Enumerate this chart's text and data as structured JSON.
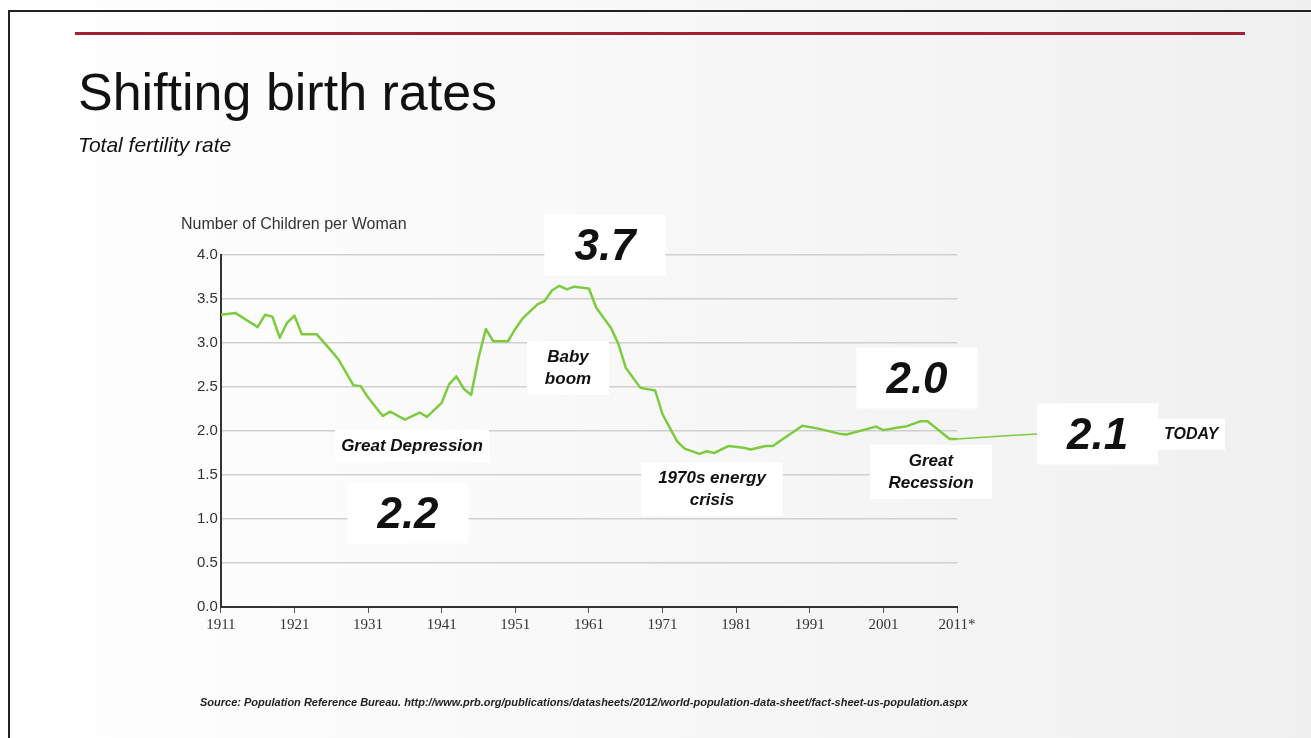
{
  "chart_data": {
    "type": "line",
    "title": "Shifting birth rates",
    "subtitle": "Total fertility rate",
    "ylabel": "Number of Children per Woman",
    "x": [
      1911,
      1913,
      1916,
      1917,
      1918,
      1919,
      1920,
      1921,
      1922,
      1924,
      1926,
      1927,
      1929,
      1930,
      1931,
      1933,
      1934,
      1936,
      1938,
      1939,
      1941,
      1942,
      1943,
      1944,
      1945,
      1946,
      1947,
      1948,
      1950,
      1951,
      1952,
      1954,
      1955,
      1956,
      1957,
      1958,
      1959,
      1961,
      1962,
      1964,
      1965,
      1966,
      1968,
      1970,
      1971,
      1973,
      1974,
      1976,
      1977,
      1978,
      1980,
      1982,
      1983,
      1985,
      1986,
      1987,
      1990,
      1992,
      1995,
      1996,
      2000,
      2001,
      2003,
      2004,
      2006,
      2007,
      2010,
      2011
    ],
    "series": [
      {
        "color": "#7dcb3f",
        "values": [
          3.32,
          3.34,
          3.18,
          3.32,
          3.3,
          3.06,
          3.23,
          3.31,
          3.1,
          3.1,
          2.91,
          2.81,
          2.52,
          2.51,
          2.38,
          2.17,
          2.22,
          2.13,
          2.21,
          2.16,
          2.32,
          2.53,
          2.62,
          2.48,
          2.41,
          2.83,
          3.16,
          3.02,
          3.02,
          3.16,
          3.28,
          3.44,
          3.48,
          3.6,
          3.65,
          3.61,
          3.64,
          3.62,
          3.4,
          3.17,
          2.99,
          2.72,
          2.49,
          2.46,
          2.19,
          1.88,
          1.8,
          1.74,
          1.77,
          1.75,
          1.83,
          1.81,
          1.79,
          1.83,
          1.83,
          1.89,
          2.06,
          2.03,
          1.97,
          1.96,
          2.05,
          2.01,
          2.04,
          2.05,
          2.11,
          2.11,
          1.91,
          1.91
        ]
      }
    ],
    "xlim": [
      1911,
      2011
    ],
    "xticks": [
      1911,
      1921,
      1931,
      1941,
      1951,
      1961,
      1971,
      1981,
      1991,
      2001,
      {
        "value": 2011,
        "label": "2011*"
      }
    ],
    "ylim": [
      0,
      4
    ],
    "yticks": [
      {
        "value": 0,
        "label": "0.0"
      },
      0.5,
      {
        "value": 1,
        "label": "1.0"
      },
      1.5,
      {
        "value": 2,
        "label": "2.0"
      },
      2.5,
      {
        "value": 3,
        "label": "3.0"
      },
      3.5,
      {
        "value": 4,
        "label": "4.0"
      }
    ],
    "grid": "y",
    "legend": false,
    "marker": "none",
    "line_style": "solid",
    "annotations": [
      "3.7",
      "Baby boom",
      "Great Depression",
      "2.2",
      "1970s energy crisis",
      "2.0",
      "Great Recession",
      {
        "text": "2.1",
        "x": 2011,
        "y": 1.91
      },
      "TODAY",
      "Source: Population Reference Bureau. http://www.prb.org/publications/datasheets/2012/world-population-data-sheet/fact-sheet-us-population.aspx"
    ]
  }
}
